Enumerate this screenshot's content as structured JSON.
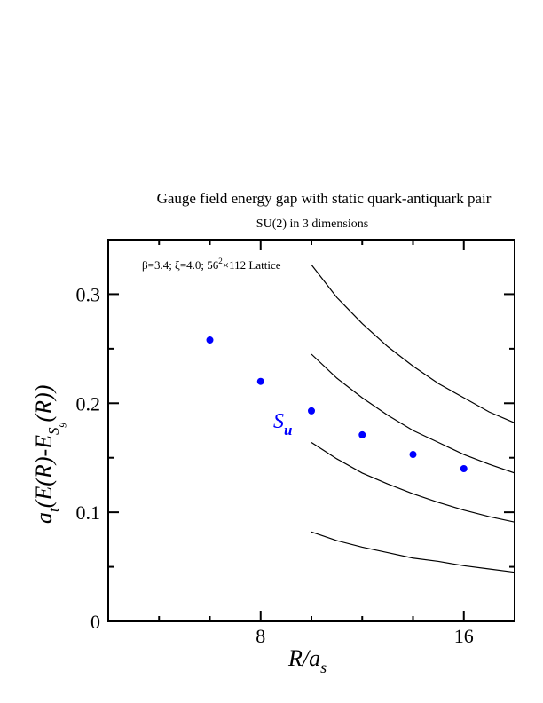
{
  "chart_data": {
    "type": "scatter",
    "title": "Gauge field energy gap with static quark-antiquark pair",
    "subtitle": "SU(2) in 3 dimensions",
    "annotation": [
      "β=3.4;  ξ=4.0; 56",
      "2",
      "×112 Lattice"
    ],
    "series_label": [
      "S",
      "u"
    ],
    "x_label": [
      "R/a",
      "s"
    ],
    "y_label": [
      "a",
      "t",
      "(E(R)-E",
      "S",
      "g",
      "(R))"
    ],
    "xlim": [
      2,
      18
    ],
    "xticks": [
      8,
      16
    ],
    "xminorticks": [
      4,
      6,
      10,
      12,
      14
    ],
    "ylim": [
      0,
      0.35
    ],
    "yticks": [
      0,
      0.1,
      0.2,
      0.3
    ],
    "yminorticks": [
      0.05,
      0.15,
      0.25
    ],
    "series": [
      {
        "type": "scatter",
        "color": "#0000ff",
        "x": [
          6,
          8,
          10,
          12,
          14,
          16
        ],
        "values": [
          0.258,
          0.22,
          0.193,
          0.171,
          0.153,
          0.14
        ]
      },
      {
        "type": "line",
        "color": "#000000",
        "x": [
          10,
          11,
          12,
          13,
          14,
          15,
          16,
          17,
          18
        ],
        "values": [
          0.082,
          0.074,
          0.068,
          0.063,
          0.058,
          0.055,
          0.051,
          0.048,
          0.045
        ]
      },
      {
        "type": "line",
        "color": "#000000",
        "x": [
          10,
          11,
          12,
          13,
          14,
          15,
          16,
          17,
          18
        ],
        "values": [
          0.164,
          0.149,
          0.136,
          0.126,
          0.117,
          0.109,
          0.102,
          0.096,
          0.091
        ]
      },
      {
        "type": "line",
        "color": "#000000",
        "x": [
          10,
          11,
          12,
          13,
          14,
          15,
          16,
          17,
          18
        ],
        "values": [
          0.245,
          0.223,
          0.205,
          0.189,
          0.175,
          0.164,
          0.153,
          0.144,
          0.136
        ]
      },
      {
        "type": "line",
        "color": "#000000",
        "x": [
          10,
          11,
          12,
          13,
          14,
          15,
          16,
          17,
          18
        ],
        "values": [
          0.327,
          0.297,
          0.273,
          0.252,
          0.234,
          0.218,
          0.205,
          0.192,
          0.182
        ]
      }
    ]
  }
}
